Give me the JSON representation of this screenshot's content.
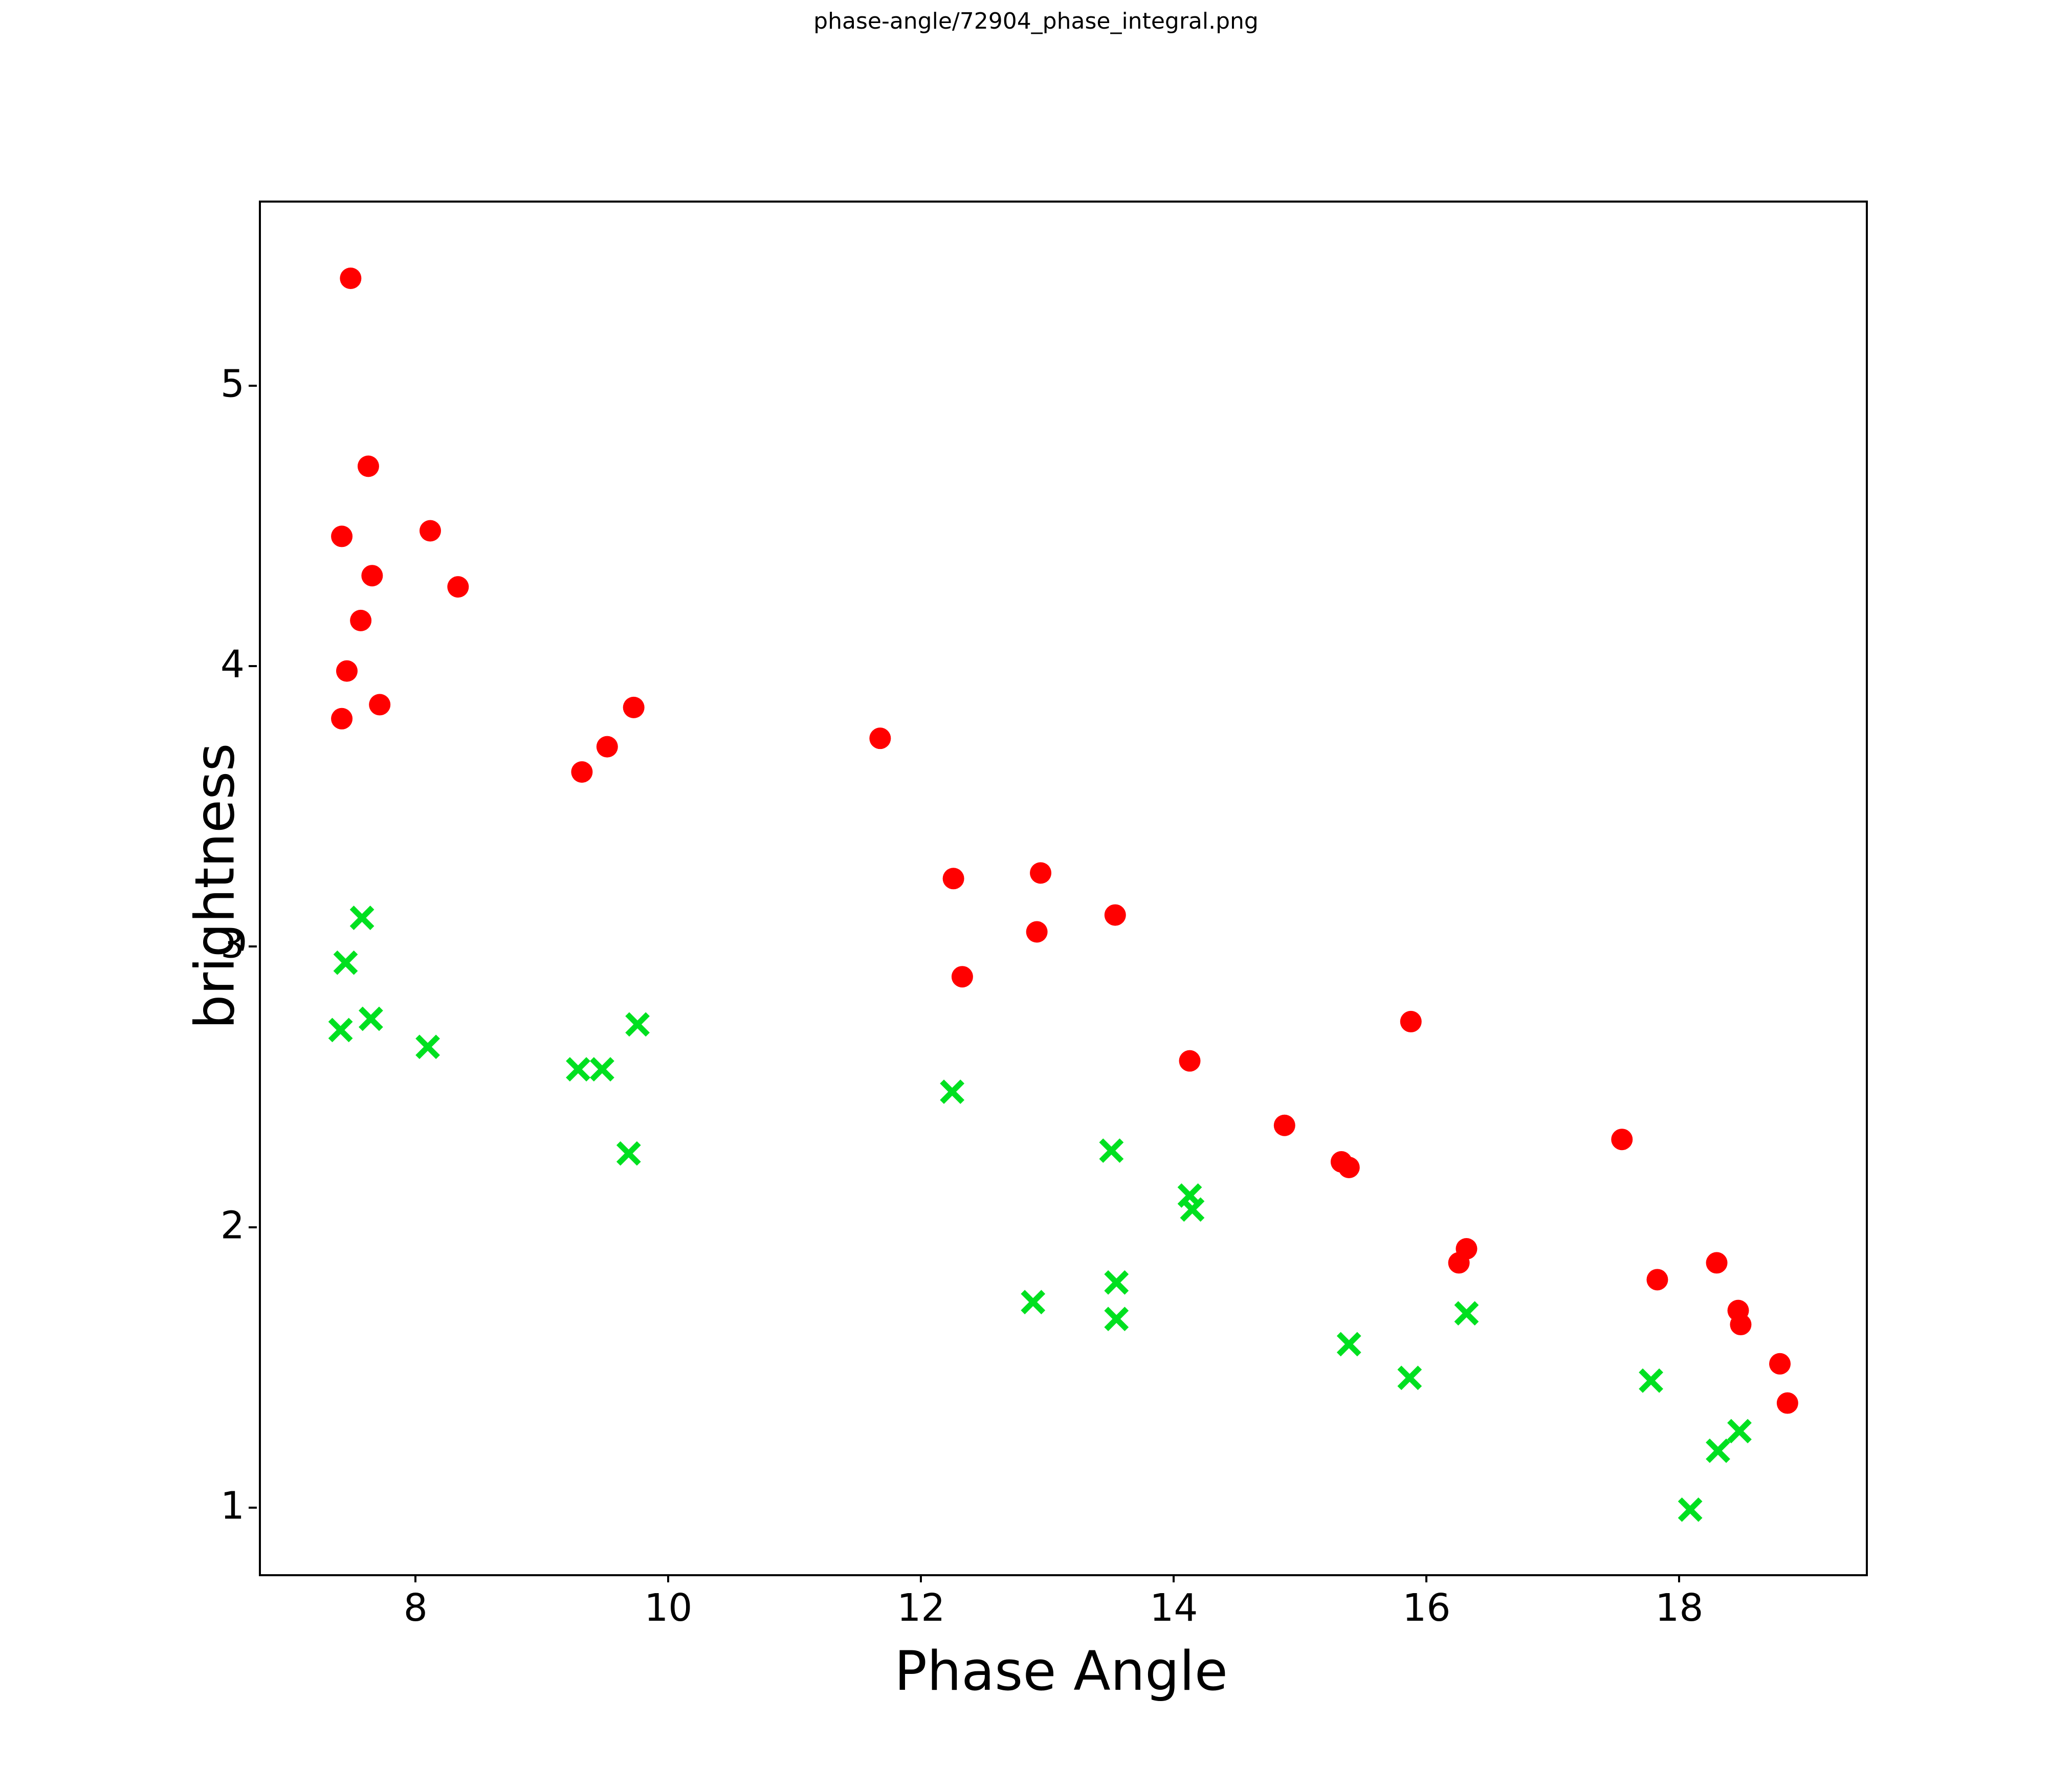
{
  "title": "phase-angle/72904_phase_integral.png",
  "chart_data": {
    "type": "scatter",
    "title": "phase-angle/72904_phase_integral.png",
    "xlabel": "Phase Angle",
    "ylabel": "brightness",
    "xlim": [
      6.76,
      19.46
    ],
    "ylim": [
      0.77,
      5.66
    ],
    "x_ticks": [
      8,
      10,
      12,
      14,
      16,
      18
    ],
    "y_ticks": [
      1,
      2,
      3,
      4,
      5
    ],
    "grid": false,
    "legend_position": "none",
    "axis_color": "#000000",
    "background_color": "#ffffff",
    "series": [
      {
        "name": "red-circles",
        "marker": "circle",
        "color": "#ff0000",
        "points": [
          [
            7.47,
            5.39
          ],
          [
            7.61,
            4.72
          ],
          [
            7.4,
            4.47
          ],
          [
            8.1,
            4.49
          ],
          [
            7.64,
            4.33
          ],
          [
            8.32,
            4.29
          ],
          [
            7.55,
            4.17
          ],
          [
            7.44,
            3.99
          ],
          [
            7.7,
            3.87
          ],
          [
            7.4,
            3.82
          ],
          [
            9.71,
            3.86
          ],
          [
            9.5,
            3.72
          ],
          [
            9.3,
            3.63
          ],
          [
            11.66,
            3.75
          ],
          [
            12.24,
            3.25
          ],
          [
            12.93,
            3.27
          ],
          [
            13.52,
            3.12
          ],
          [
            12.9,
            3.06
          ],
          [
            12.31,
            2.9
          ],
          [
            15.86,
            2.74
          ],
          [
            14.11,
            2.6
          ],
          [
            14.86,
            2.37
          ],
          [
            15.31,
            2.24
          ],
          [
            15.37,
            2.22
          ],
          [
            16.3,
            1.93
          ],
          [
            16.24,
            1.88
          ],
          [
            17.53,
            2.32
          ],
          [
            17.81,
            1.82
          ],
          [
            18.28,
            1.88
          ],
          [
            18.45,
            1.71
          ],
          [
            18.47,
            1.66
          ],
          [
            18.78,
            1.52
          ],
          [
            18.84,
            1.38
          ]
        ]
      },
      {
        "name": "green-crosses",
        "marker": "x",
        "color": "#00e020",
        "points": [
          [
            7.56,
            3.11
          ],
          [
            7.43,
            2.95
          ],
          [
            7.39,
            2.71
          ],
          [
            7.63,
            2.75
          ],
          [
            8.08,
            2.65
          ],
          [
            9.74,
            2.73
          ],
          [
            9.27,
            2.57
          ],
          [
            9.46,
            2.57
          ],
          [
            9.67,
            2.27
          ],
          [
            12.23,
            2.49
          ],
          [
            13.49,
            2.28
          ],
          [
            14.11,
            2.12
          ],
          [
            14.13,
            2.07
          ],
          [
            12.87,
            1.74
          ],
          [
            13.53,
            1.81
          ],
          [
            13.53,
            1.68
          ],
          [
            16.3,
            1.7
          ],
          [
            15.37,
            1.59
          ],
          [
            15.85,
            1.47
          ],
          [
            17.76,
            1.46
          ],
          [
            18.46,
            1.28
          ],
          [
            18.29,
            1.21
          ],
          [
            18.07,
            1.0
          ]
        ]
      }
    ]
  }
}
